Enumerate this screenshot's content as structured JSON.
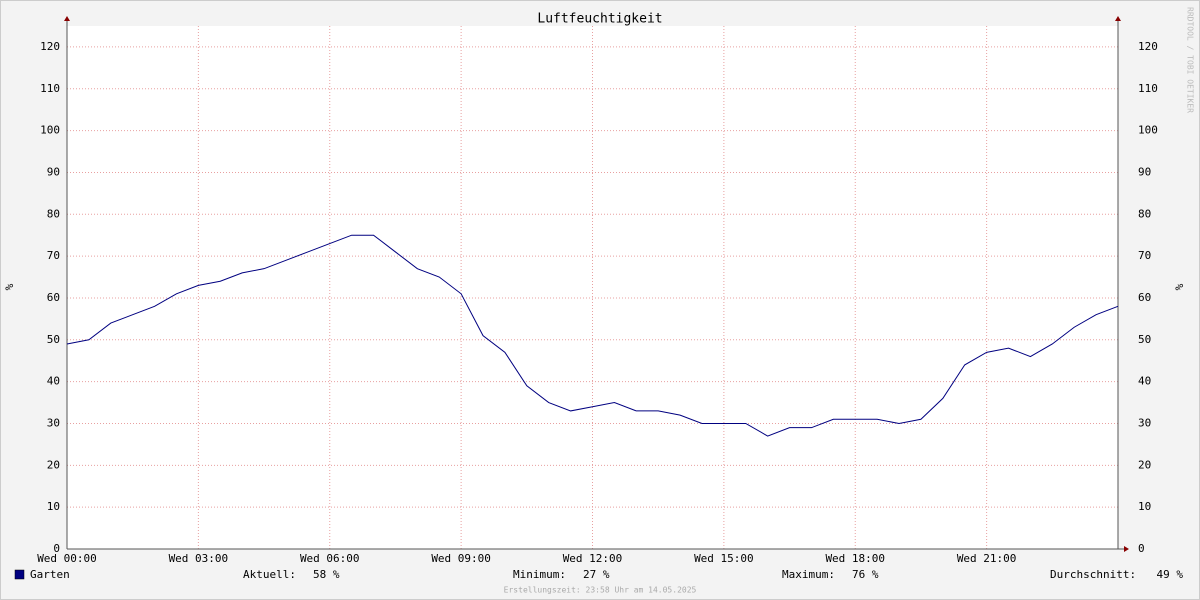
{
  "chart_data": {
    "type": "line",
    "title": "Luftfeuchtigkeit",
    "ylabel": "%",
    "y2label": "%",
    "watermark": "RRDTOOL / TOBI OETIKER",
    "footer": "Erstellungszeit: 23:58 Uhr am 14.05.2025",
    "x": [
      0,
      0.5,
      1,
      1.5,
      2,
      2.5,
      3,
      3.5,
      4,
      4.5,
      5,
      5.5,
      6,
      6.5,
      7,
      7.5,
      8,
      8.5,
      9,
      9.5,
      10,
      10.5,
      11,
      11.5,
      12,
      12.5,
      13,
      13.5,
      14,
      14.5,
      15,
      15.5,
      16,
      16.5,
      17,
      17.5,
      18,
      18.5,
      19,
      19.5,
      20,
      20.5,
      21,
      21.5,
      22,
      22.5,
      23,
      23.5,
      24
    ],
    "xlim": [
      0,
      24
    ],
    "xticks": [
      {
        "value": 0,
        "label": "Wed 00:00"
      },
      {
        "value": 3,
        "label": "Wed 03:00"
      },
      {
        "value": 6,
        "label": "Wed 06:00"
      },
      {
        "value": 9,
        "label": "Wed 09:00"
      },
      {
        "value": 12,
        "label": "Wed 12:00"
      },
      {
        "value": 15,
        "label": "Wed 15:00"
      },
      {
        "value": 18,
        "label": "Wed 18:00"
      },
      {
        "value": 21,
        "label": "Wed 21:00"
      }
    ],
    "ylim": [
      0,
      125
    ],
    "yticks": [
      0,
      10,
      20,
      30,
      40,
      50,
      60,
      70,
      80,
      90,
      100,
      110,
      120
    ],
    "y2lim": [
      0,
      125
    ],
    "y2ticks": [
      0,
      10,
      20,
      30,
      40,
      50,
      60,
      70,
      80,
      90,
      100,
      110,
      120
    ],
    "grid": true,
    "series": [
      {
        "name": "Garten",
        "color": "#000080",
        "values": [
          49,
          50,
          54,
          56,
          58,
          61,
          63,
          64,
          66,
          67,
          69,
          71,
          73,
          75,
          75,
          71,
          67,
          65,
          61,
          51,
          47,
          39,
          35,
          33,
          34,
          35,
          33,
          33,
          32,
          30,
          30,
          30,
          27,
          29,
          29,
          31,
          31,
          31,
          30,
          31,
          36,
          44,
          47,
          48,
          46,
          49,
          53,
          56,
          58
        ]
      }
    ],
    "stats": {
      "labels": [
        "Aktuell:",
        "Minimum:",
        "Maximum:",
        "Durchschnitt:"
      ],
      "values": [
        58,
        27,
        76,
        49
      ],
      "value_labels": [
        "58 %",
        "27 %",
        "76 %",
        "49 %"
      ]
    }
  }
}
